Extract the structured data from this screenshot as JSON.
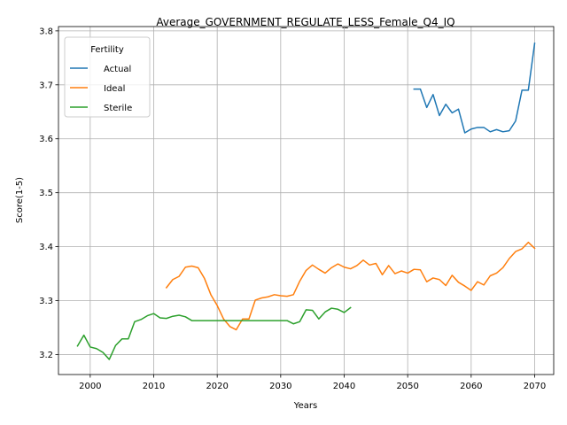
{
  "chart_data": {
    "type": "line",
    "title": "Average_GOVERNMENT_REGULATE_LESS_Female_Q4_IQ",
    "xlabel": "Years",
    "ylabel": "Score(1-5)",
    "xlim": [
      1995,
      2073
    ],
    "ylim": [
      3.163,
      3.808
    ],
    "xticks": [
      2000,
      2010,
      2020,
      2030,
      2040,
      2050,
      2060,
      2070
    ],
    "yticks": [
      3.2,
      3.3,
      3.4,
      3.5,
      3.6,
      3.7,
      3.8
    ],
    "grid": true,
    "legend": {
      "title": "Fertility",
      "placement": "upper-left"
    },
    "series": [
      {
        "name": "Actual",
        "color": "#1f77b4",
        "x": [
          2051,
          2052,
          2053,
          2054,
          2055,
          2056,
          2057,
          2058,
          2059,
          2060,
          2061,
          2062,
          2063,
          2064,
          2065,
          2066,
          2067,
          2068,
          2069,
          2070
        ],
        "y": [
          3.692,
          3.692,
          3.658,
          3.682,
          3.643,
          3.664,
          3.648,
          3.655,
          3.611,
          3.618,
          3.621,
          3.621,
          3.613,
          3.617,
          3.613,
          3.615,
          3.633,
          3.69,
          3.69,
          3.777
        ]
      },
      {
        "name": "Ideal",
        "color": "#ff7f0e",
        "x": [
          2012,
          2013,
          2014,
          2015,
          2016,
          2017,
          2018,
          2019,
          2020,
          2021,
          2022,
          2023,
          2024,
          2025,
          2026,
          2027,
          2028,
          2029,
          2030,
          2031,
          2032,
          2033,
          2034,
          2035,
          2036,
          2037,
          2038,
          2039,
          2040,
          2041,
          2042,
          2043,
          2044,
          2045,
          2046,
          2047,
          2048,
          2049,
          2050,
          2051,
          2052,
          2053,
          2054,
          2055,
          2056,
          2057,
          2058,
          2059,
          2060,
          2061,
          2062,
          2063,
          2064,
          2065,
          2066,
          2067,
          2068,
          2069,
          2070
        ],
        "y": [
          3.324,
          3.339,
          3.345,
          3.362,
          3.364,
          3.361,
          3.341,
          3.311,
          3.291,
          3.266,
          3.252,
          3.246,
          3.266,
          3.266,
          3.301,
          3.305,
          3.307,
          3.311,
          3.309,
          3.308,
          3.311,
          3.336,
          3.356,
          3.366,
          3.358,
          3.351,
          3.361,
          3.368,
          3.362,
          3.359,
          3.365,
          3.375,
          3.366,
          3.369,
          3.348,
          3.365,
          3.35,
          3.355,
          3.351,
          3.358,
          3.357,
          3.335,
          3.342,
          3.339,
          3.328,
          3.347,
          3.334,
          3.327,
          3.319,
          3.335,
          3.329,
          3.346,
          3.351,
          3.361,
          3.378,
          3.391,
          3.396,
          3.408,
          3.397
        ]
      },
      {
        "name": "Sterile",
        "color": "#2ca02c",
        "x": [
          1998,
          1999,
          2000,
          2001,
          2002,
          2003,
          2004,
          2005,
          2006,
          2007,
          2008,
          2009,
          2010,
          2011,
          2012,
          2013,
          2014,
          2015,
          2016,
          2017,
          2018,
          2019,
          2020,
          2021,
          2022,
          2023,
          2024,
          2025,
          2026,
          2027,
          2028,
          2029,
          2030,
          2031,
          2032,
          2033,
          2034,
          2035,
          2036,
          2037,
          2038,
          2039,
          2040,
          2041
        ],
        "y": [
          3.216,
          3.236,
          3.214,
          3.211,
          3.204,
          3.191,
          3.217,
          3.229,
          3.229,
          3.261,
          3.265,
          3.272,
          3.276,
          3.268,
          3.267,
          3.271,
          3.273,
          3.27,
          3.263,
          3.263,
          3.263,
          3.263,
          3.263,
          3.263,
          3.263,
          3.263,
          3.263,
          3.263,
          3.263,
          3.263,
          3.263,
          3.263,
          3.263,
          3.263,
          3.257,
          3.261,
          3.283,
          3.282,
          3.266,
          3.279,
          3.286,
          3.284,
          3.278,
          3.287
        ]
      }
    ]
  }
}
